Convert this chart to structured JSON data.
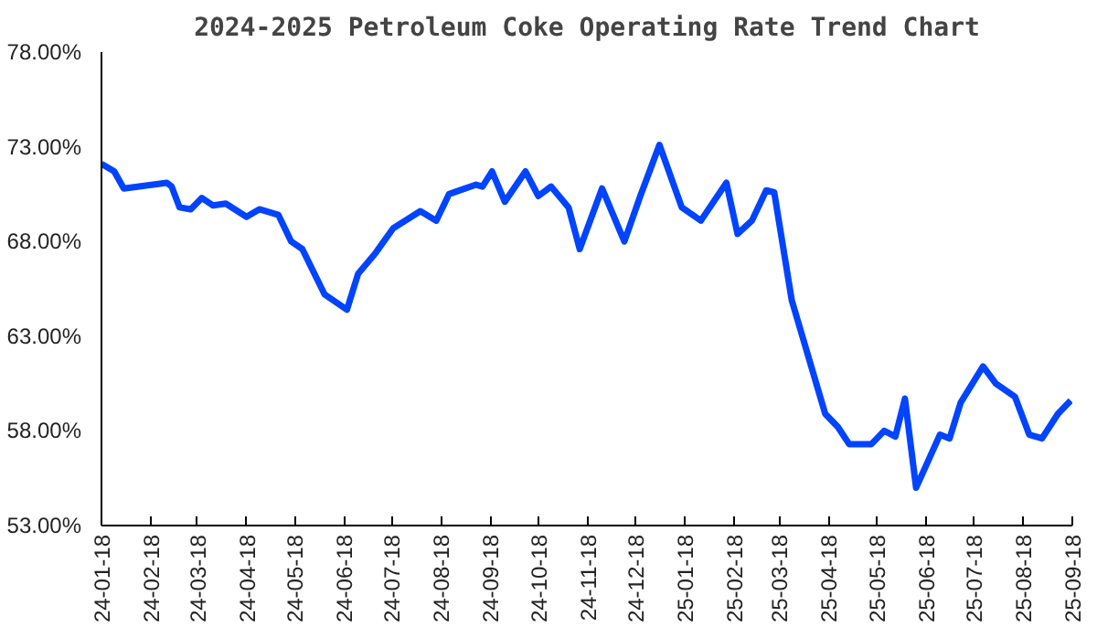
{
  "chart_data": {
    "type": "line",
    "title": "2024-2025 Petroleum Coke Operating Rate Trend Chart",
    "x": [
      "2024-01-18",
      "2024-01-26",
      "2024-02-01",
      "2024-02-28",
      "2024-03-02",
      "2024-03-07",
      "2024-03-14",
      "2024-03-21",
      "2024-03-28",
      "2024-04-05",
      "2024-04-18",
      "2024-04-26",
      "2024-05-08",
      "2024-05-16",
      "2024-05-23",
      "2024-06-06",
      "2024-06-20",
      "2024-06-27",
      "2024-07-08",
      "2024-07-19",
      "2024-08-05",
      "2024-08-15",
      "2024-08-23",
      "2024-09-09",
      "2024-09-13",
      "2024-09-19",
      "2024-09-27",
      "2024-10-10",
      "2024-10-18",
      "2024-10-26",
      "2024-11-06",
      "2024-11-13",
      "2024-11-27",
      "2024-12-11",
      "2024-12-21",
      "2025-01-02",
      "2025-01-16",
      "2025-01-28",
      "2025-02-13",
      "2025-02-20",
      "2025-03-01",
      "2025-03-10",
      "2025-03-15",
      "2025-03-26",
      "2025-04-16",
      "2025-04-24",
      "2025-05-01",
      "2025-05-15",
      "2025-05-23",
      "2025-05-30",
      "2025-06-05",
      "2025-06-12",
      "2025-06-27",
      "2025-07-03",
      "2025-07-10",
      "2025-07-24",
      "2025-08-01",
      "2025-08-13",
      "2025-08-22",
      "2025-08-30",
      "2025-09-09",
      "2025-09-17"
    ],
    "series": [
      {
        "color": "#0044ff",
        "values": [
          72.1,
          71.7,
          70.8,
          71.1,
          70.9,
          69.8,
          69.7,
          70.3,
          69.9,
          70.0,
          69.3,
          69.7,
          69.4,
          68.0,
          67.6,
          65.2,
          64.4,
          66.3,
          67.4,
          68.7,
          69.6,
          69.1,
          70.5,
          71.0,
          70.9,
          71.7,
          70.1,
          71.7,
          70.4,
          70.9,
          69.8,
          67.6,
          70.8,
          68.0,
          70.4,
          73.1,
          69.8,
          69.1,
          71.1,
          68.4,
          69.1,
          70.7,
          70.6,
          64.9,
          58.9,
          58.2,
          57.3,
          57.3,
          58.0,
          57.7,
          59.7,
          55.0,
          57.8,
          57.6,
          59.5,
          61.4,
          60.5,
          59.8,
          57.8,
          57.6,
          58.9,
          59.6
        ]
      }
    ],
    "xlim": [
      "2024-01-18",
      "2025-09-18"
    ],
    "xticks": [
      {
        "value": "2024-01-18",
        "label": "24-01-18"
      },
      {
        "value": "2024-02-18",
        "label": "24-02-18"
      },
      {
        "value": "2024-03-18",
        "label": "24-03-18"
      },
      {
        "value": "2024-04-18",
        "label": "24-04-18"
      },
      {
        "value": "2024-05-18",
        "label": "24-05-18"
      },
      {
        "value": "2024-06-18",
        "label": "24-06-18"
      },
      {
        "value": "2024-07-18",
        "label": "24-07-18"
      },
      {
        "value": "2024-08-18",
        "label": "24-08-18"
      },
      {
        "value": "2024-09-18",
        "label": "24-09-18"
      },
      {
        "value": "2024-10-18",
        "label": "24-10-18"
      },
      {
        "value": "2024-11-18",
        "label": "24-11-18"
      },
      {
        "value": "2024-12-18",
        "label": "24-12-18"
      },
      {
        "value": "2025-01-18",
        "label": "25-01-18"
      },
      {
        "value": "2025-02-18",
        "label": "25-02-18"
      },
      {
        "value": "2025-03-18",
        "label": "25-03-18"
      },
      {
        "value": "2025-04-18",
        "label": "25-04-18"
      },
      {
        "value": "2025-05-18",
        "label": "25-05-18"
      },
      {
        "value": "2025-06-18",
        "label": "25-06-18"
      },
      {
        "value": "2025-07-18",
        "label": "25-07-18"
      },
      {
        "value": "2025-08-18",
        "label": "25-08-18"
      },
      {
        "value": "2025-09-18",
        "label": "25-09-18"
      }
    ],
    "ylim": [
      53,
      78
    ],
    "yticks": [
      {
        "value": 53,
        "label": "53.00%"
      },
      {
        "value": 58,
        "label": "58.00%"
      },
      {
        "value": 63,
        "label": "63.00%"
      },
      {
        "value": 68,
        "label": "68.00%"
      },
      {
        "value": 73,
        "label": "73.00%"
      },
      {
        "value": 78,
        "label": "78.00%"
      }
    ],
    "marker": "none",
    "line_style": "solid"
  }
}
